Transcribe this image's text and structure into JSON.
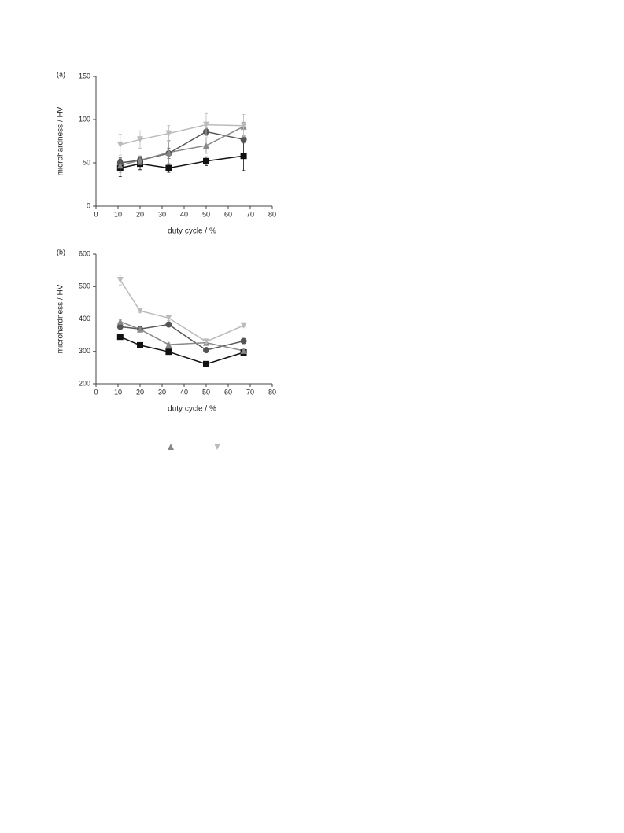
{
  "chart_data": [
    {
      "type": "line",
      "panel_label": "(a)",
      "y_label": "microhardness / HV",
      "x_label": "duty cycle / %",
      "xlim": [
        0,
        80
      ],
      "xticks": [
        0,
        10,
        20,
        30,
        40,
        50,
        60,
        70,
        80
      ],
      "ylim": [
        0,
        150
      ],
      "yticks": [
        0,
        50,
        100,
        150
      ],
      "x": [
        11,
        20,
        33,
        50,
        67
      ],
      "series": [
        {
          "marker": "square",
          "color": "#111111",
          "values": [
            44,
            49,
            44,
            52,
            58
          ],
          "errors": [
            10,
            7,
            5,
            5,
            17
          ]
        },
        {
          "marker": "circle",
          "color": "#555555",
          "values": [
            50,
            53,
            61,
            86,
            77
          ],
          "errors": [
            6,
            4,
            6,
            4,
            4
          ]
        },
        {
          "marker": "triangle",
          "color": "#888888",
          "values": [
            47,
            53,
            62,
            70,
            92
          ],
          "errors": [
            8,
            5,
            14,
            9,
            5
          ]
        },
        {
          "marker": "triangle-down",
          "color": "#bbbbbb",
          "values": [
            71,
            77,
            84,
            94,
            93
          ],
          "errors": [
            12,
            10,
            9,
            13,
            13
          ]
        }
      ]
    },
    {
      "type": "line",
      "panel_label": "(b)",
      "y_label": "microhardness / HV",
      "x_label": "duty cycle / %",
      "xlim": [
        0,
        80
      ],
      "xticks": [
        0,
        10,
        20,
        30,
        40,
        50,
        60,
        70,
        80
      ],
      "ylim": [
        200,
        600
      ],
      "yticks": [
        200,
        300,
        400,
        500,
        600
      ],
      "x": [
        11,
        20,
        33,
        50,
        67
      ],
      "series": [
        {
          "marker": "square",
          "color": "#111111",
          "values": [
            345,
            319,
            299,
            261,
            297
          ],
          "errors": [
            5,
            8,
            5,
            5,
            5
          ]
        },
        {
          "marker": "circle",
          "color": "#555555",
          "values": [
            376,
            369,
            383,
            304,
            332
          ],
          "errors": [
            5,
            5,
            6,
            8,
            8
          ]
        },
        {
          "marker": "triangle",
          "color": "#888888",
          "values": [
            392,
            368,
            321,
            327,
            302
          ],
          "errors": [
            5,
            5,
            5,
            5,
            5
          ]
        },
        {
          "marker": "triangle-down",
          "color": "#bbbbbb",
          "values": [
            520,
            425,
            403,
            330,
            380
          ],
          "errors": [
            15,
            5,
            8,
            5,
            5
          ]
        }
      ]
    }
  ]
}
